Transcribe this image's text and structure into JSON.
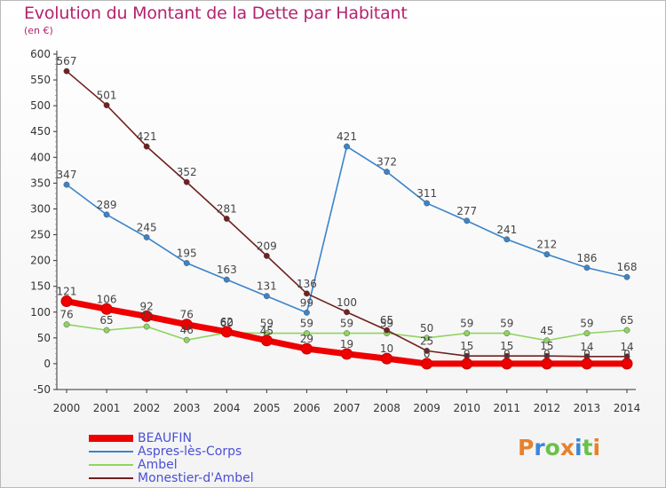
{
  "chart_title": "Evolution du Montant de la Dette par Habitant",
  "chart_subtitle": "(en €)",
  "logo_text": "Proxiti",
  "logo_colors": [
    "#e8812b",
    "#3b87d9",
    "#6cc04a",
    "#e8812b",
    "#3b87d9",
    "#6cc04a",
    "#e8812b"
  ],
  "chart_data": {
    "type": "line",
    "title": "Evolution du Montant de la Dette par Habitant",
    "subtitle": "(en €)",
    "x": [
      "2000",
      "2001",
      "2002",
      "2003",
      "2004",
      "2005",
      "2006",
      "2007",
      "2008",
      "2009",
      "2010",
      "2011",
      "2012",
      "2013",
      "2014"
    ],
    "ylim": [
      -50,
      600
    ],
    "yticks": [
      -50,
      0,
      50,
      100,
      150,
      200,
      250,
      300,
      350,
      400,
      450,
      500,
      550,
      600
    ],
    "grid": false,
    "legend_position": "bottom",
    "series": [
      {
        "name": "BEAUFIN",
        "color": "#ee0000",
        "values": [
          121,
          106,
          92,
          76,
          62,
          45,
          29,
          19,
          10,
          0,
          0,
          0,
          0,
          0,
          0
        ],
        "labels": [
          "121",
          "106",
          "92",
          "76",
          "62",
          "45",
          "29",
          "19",
          "10",
          "0",
          "0",
          "0",
          "0",
          "0",
          "0"
        ]
      },
      {
        "name": "Aspres-lès-Corps",
        "color": "#3b84c9",
        "values": [
          347,
          289,
          245,
          195,
          163,
          131,
          99,
          421,
          372,
          311,
          277,
          241,
          212,
          186,
          168
        ],
        "labels": [
          "347",
          "289",
          "245",
          "195",
          "163",
          "131",
          "99",
          "421",
          "372",
          "311",
          "277",
          "241",
          "212",
          "186",
          "168"
        ]
      },
      {
        "name": "Ambel",
        "color": "#8ed45e",
        "values": [
          76,
          65,
          72,
          46,
          60,
          59,
          59,
          59,
          59,
          50,
          59,
          59,
          45,
          59,
          65
        ],
        "labels": [
          "76",
          "65",
          "72",
          "46",
          "60",
          "59",
          "59",
          "59",
          "59",
          "50",
          "59",
          "59",
          "45",
          "59",
          "65"
        ]
      },
      {
        "name": "Monestier-d'Ambel",
        "color": "#722020",
        "values": [
          567,
          501,
          421,
          352,
          281,
          209,
          136,
          100,
          65,
          25,
          15,
          15,
          15,
          14,
          14
        ],
        "labels": [
          "567",
          "501",
          "421",
          "352",
          "281",
          "209",
          "136",
          "100",
          "65",
          "25",
          "15",
          "15",
          "15",
          "14",
          "14"
        ]
      }
    ]
  }
}
